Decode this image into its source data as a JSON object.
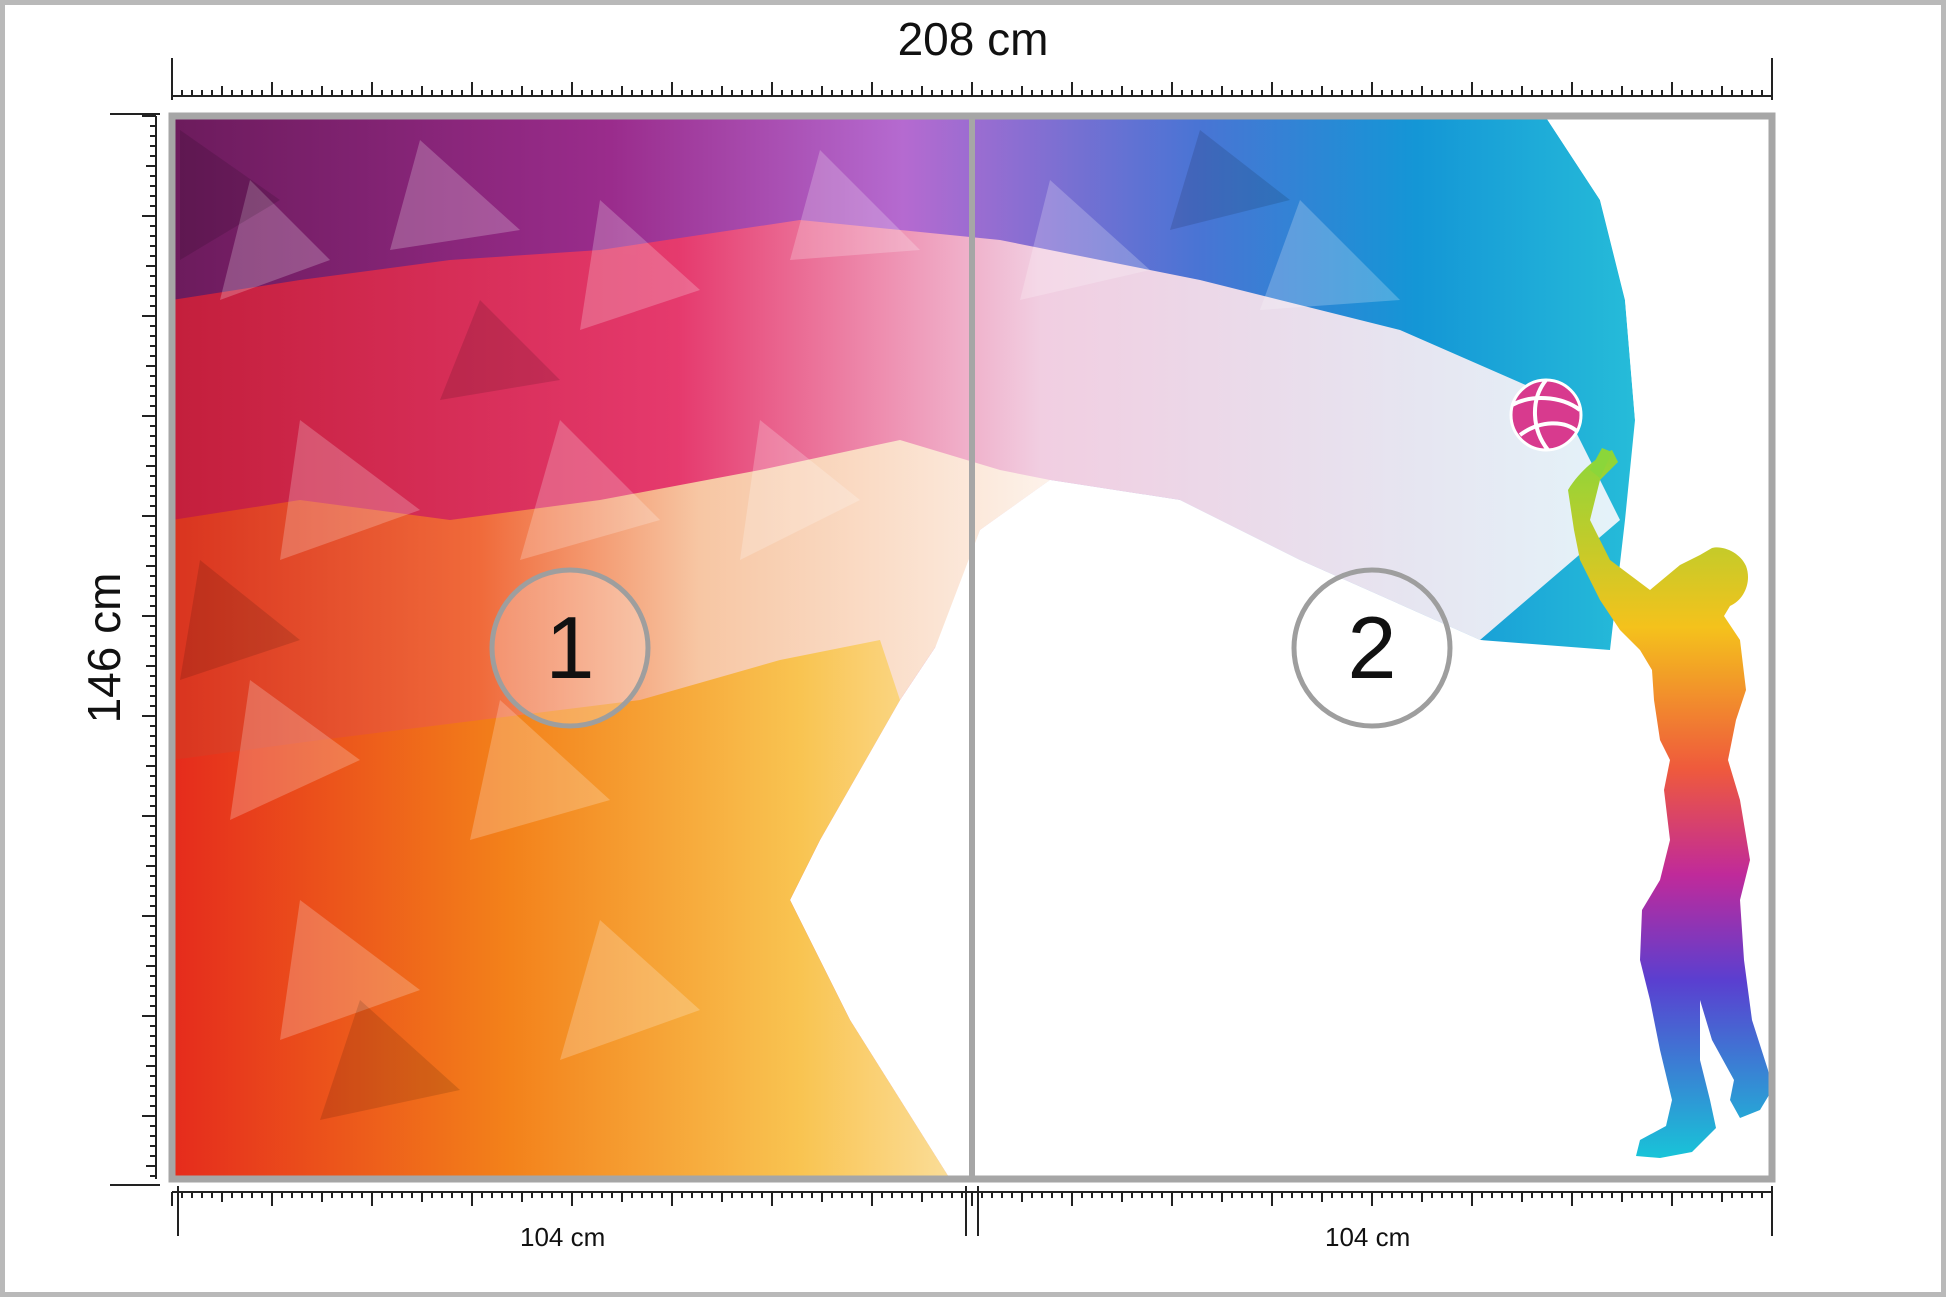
{
  "dimensions": {
    "width_label": "208 cm",
    "height_label": "146 cm",
    "panels": [
      {
        "number": "1",
        "width_label": "104 cm"
      },
      {
        "number": "2",
        "width_label": "104 cm"
      }
    ]
  },
  "colors": {
    "frame": "#a6a6a6",
    "outer_border": "#b9b9b9",
    "ruler": "#222222",
    "badge_ring": "#9e9e9e"
  },
  "artwork": {
    "style": "low-poly rainbow wave",
    "figure": "volleyball player silhouette",
    "ball": "volleyball"
  }
}
